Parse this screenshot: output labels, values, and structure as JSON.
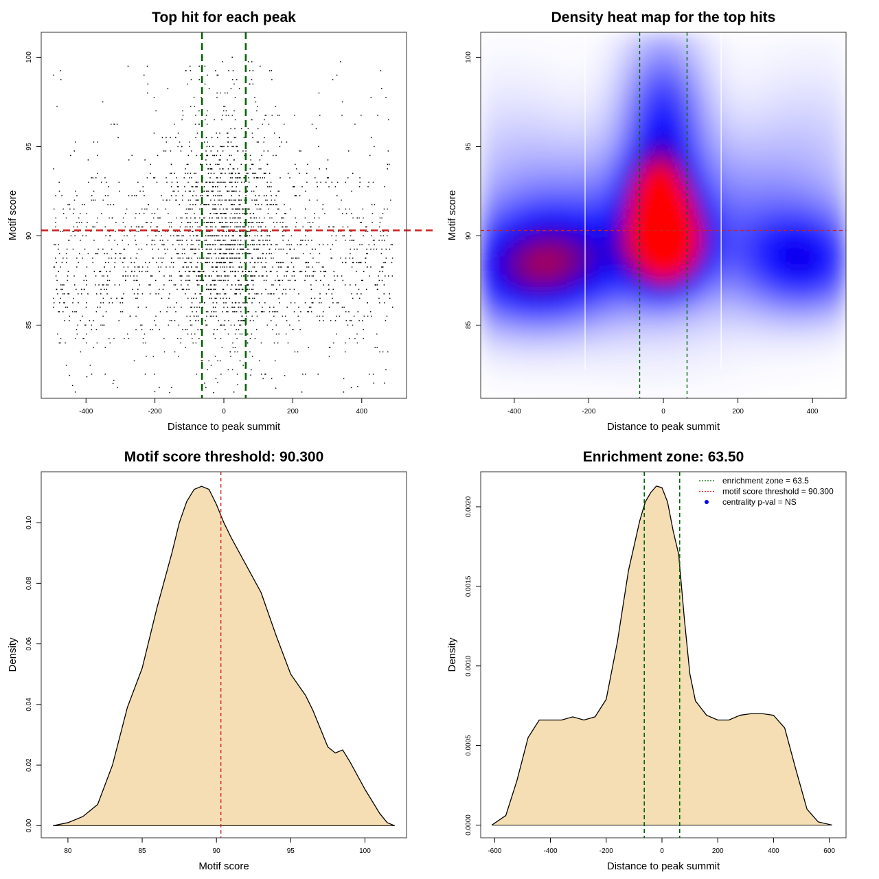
{
  "chart_data": [
    {
      "type": "scatter",
      "title": "Top hit for each peak",
      "xlabel": "Distance to peak summit",
      "ylabel": "Motif score",
      "xlim": [
        -530,
        530
      ],
      "ylim": [
        80.9,
        101.4
      ],
      "xticks": [
        -400,
        -200,
        0,
        200,
        400
      ],
      "yticks": [
        85,
        90,
        95,
        100
      ],
      "enrichment_zone": [
        -63.5,
        63.5
      ],
      "threshold": 90.3,
      "point_count": 2600,
      "colors": {
        "points": "#000000",
        "zone": "#006400",
        "threshold": "#cc2222"
      }
    },
    {
      "type": "heatmap",
      "title": "Density heat map for the top hits",
      "xlabel": "Distance to peak summit",
      "ylabel": "Motif score",
      "xlim": [
        -490,
        490
      ],
      "ylim": [
        80.9,
        101.4
      ],
      "xticks": [
        -400,
        -200,
        0,
        200,
        400
      ],
      "yticks": [
        85,
        90,
        95,
        100
      ],
      "enrichment_zone": [
        -63.5,
        63.5
      ],
      "threshold": 90.3,
      "white_lines_x": [
        -210,
        155
      ],
      "colors": {
        "low": "#ffffff",
        "mid": "#0000ff",
        "high": "#ff0000"
      }
    },
    {
      "type": "area",
      "title": "Motif score threshold: 90.300",
      "xlabel": "Motif score",
      "ylabel": "Density",
      "xlim": [
        78.2,
        102.8
      ],
      "ylim": [
        -0.004,
        0.1168
      ],
      "xticks": [
        80,
        85,
        90,
        95,
        100
      ],
      "yticks": [
        0.0,
        0.02,
        0.04,
        0.06,
        0.08,
        0.1
      ],
      "ytick_labels": [
        "0.00",
        "0.02",
        "0.04",
        "0.06",
        "0.08",
        "0.10"
      ],
      "threshold": 90.3,
      "x": [
        79.0,
        80.0,
        81.0,
        82.0,
        83.0,
        84.0,
        85.0,
        86.0,
        87.0,
        87.5,
        88.0,
        88.5,
        89.0,
        89.5,
        90.0,
        90.5,
        91.0,
        92.0,
        93.0,
        94.0,
        95.0,
        96.0,
        96.5,
        97.0,
        97.5,
        98.0,
        98.5,
        99.0,
        100.0,
        101.0,
        101.5,
        102.0
      ],
      "y": [
        0.0,
        0.001,
        0.003,
        0.007,
        0.02,
        0.039,
        0.052,
        0.072,
        0.09,
        0.1,
        0.107,
        0.111,
        0.112,
        0.111,
        0.106,
        0.1,
        0.095,
        0.086,
        0.077,
        0.063,
        0.05,
        0.043,
        0.038,
        0.032,
        0.026,
        0.024,
        0.025,
        0.021,
        0.012,
        0.004,
        0.001,
        0.0
      ],
      "colors": {
        "fill": "#f5deb3",
        "line": "#000000",
        "threshold": "#cc2222"
      }
    },
    {
      "type": "area",
      "title": "Enrichment zone: 63.50",
      "xlabel": "Distance to peak summit",
      "ylabel": "Density",
      "xlim": [
        -650,
        660
      ],
      "ylim": [
        -8e-05,
        0.00222
      ],
      "xticks": [
        -600,
        -400,
        -200,
        0,
        200,
        400,
        600
      ],
      "yticks": [
        0.0,
        0.0005,
        0.001,
        0.0015,
        0.002
      ],
      "ytick_labels": [
        "0.0000",
        "0.0005",
        "0.0010",
        "0.0015",
        "0.0020"
      ],
      "enrichment_zone": [
        -63.5,
        63.5
      ],
      "x": [
        -610,
        -560,
        -520,
        -480,
        -440,
        -400,
        -360,
        -320,
        -280,
        -240,
        -200,
        -160,
        -120,
        -80,
        -60,
        -40,
        -20,
        0,
        20,
        40,
        60,
        80,
        100,
        120,
        160,
        200,
        240,
        280,
        320,
        360,
        400,
        440,
        480,
        520,
        560,
        610
      ],
      "y": [
        0.0,
        6e-05,
        0.00028,
        0.00055,
        0.00066,
        0.00066,
        0.00066,
        0.00068,
        0.00066,
        0.00068,
        0.00079,
        0.00115,
        0.0016,
        0.00191,
        0.00203,
        0.00209,
        0.00213,
        0.00212,
        0.00203,
        0.00185,
        0.0017,
        0.0013,
        0.00095,
        0.00078,
        0.00069,
        0.00066,
        0.00066,
        0.00069,
        0.0007,
        0.0007,
        0.00069,
        0.00061,
        0.00035,
        0.0001,
        2e-05,
        0.0
      ],
      "legend": [
        {
          "label": "enrichment zone = 63.5",
          "style": "dotted",
          "color": "#006400"
        },
        {
          "label": "motif score threshold = 90.300",
          "style": "dotted",
          "color": "#cc2222"
        },
        {
          "label": "centrality p-val = NS",
          "style": "point",
          "color": "#0000ff"
        }
      ],
      "legend_position": "top-right",
      "colors": {
        "fill": "#f5deb3",
        "line": "#000000",
        "zone": "#006400"
      }
    }
  ]
}
